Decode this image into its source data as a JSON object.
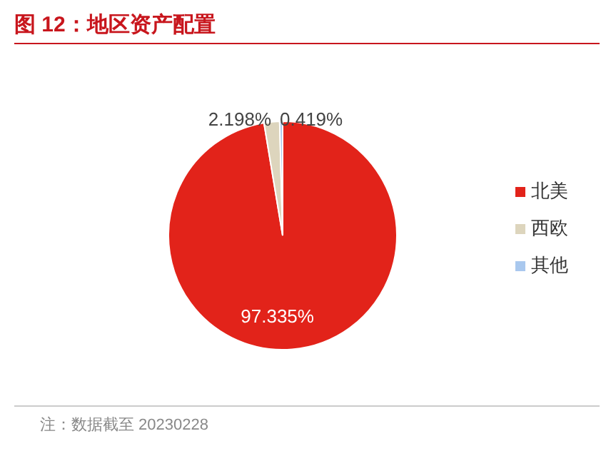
{
  "chart_data": {
    "type": "pie",
    "title": "图 12：地区资产配置",
    "categories": [
      "北美",
      "西欧",
      "其他"
    ],
    "values": [
      97.335,
      2.198,
      0.419
    ],
    "value_labels": [
      "97.335%",
      "2.198%",
      "0.419%"
    ],
    "colors": [
      "#e2231a",
      "#ddd5bd",
      "#a9c8ee"
    ],
    "legend": "right",
    "annotations": [
      "注：数据截至 20230228"
    ]
  }
}
